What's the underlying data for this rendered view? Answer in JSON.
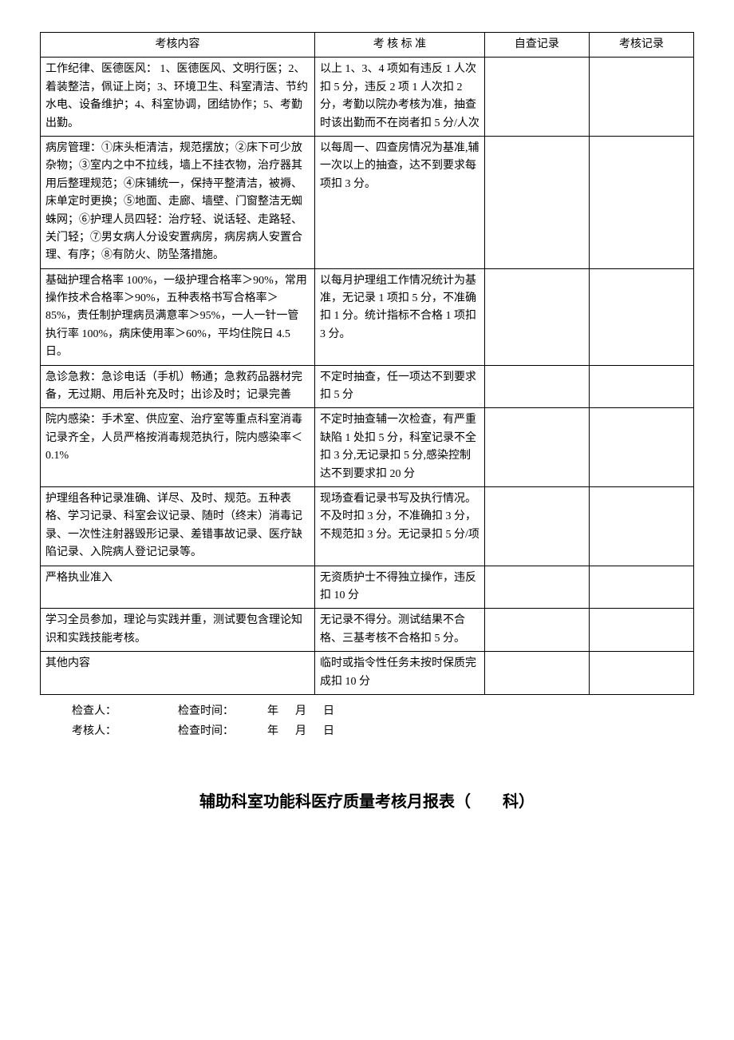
{
  "table": {
    "headers": [
      "考核内容",
      "考 核 标 准",
      "自查记录",
      "考核记录"
    ],
    "rows": [
      {
        "content": "工作纪律、医德医风：\n1、医德医风、文明行医；2、着装整洁，佩证上岗；3、环境卫生、科室清洁、节约水电、设备维护；4、科室协调，团结协作；5、考勤出勤。",
        "standard": "以上 1、3、4 项如有违反 1 人次扣 5 分，违反 2 项 1 人次扣 2 分，考勤以院办考核为准，抽查时该出勤而不在岗者扣 5 分/人次",
        "self": "",
        "review": ""
      },
      {
        "content": "病房管理：①床头柜清洁，规范摆放；②床下可少放杂物；③室内之中不拉线，墙上不挂衣物，治疗器其用后整理规范；④床铺统一，保持平整清洁，被褥、床单定时更换；⑤地面、走廊、墙壁、门窗整洁无蜘蛛网；⑥护理人员四轻：治疗轻、说话轻、走路轻、关门轻；⑦男女病人分设安置病房，病房病人安置合理、有序；⑧有防火、防坠落措施。",
        "standard": "以每周一、四查房情况为基准,辅一次以上的抽查，达不到要求每项扣 3 分。",
        "self": "",
        "review": ""
      },
      {
        "content": "基础护理合格率 100%，一级护理合格率＞90%，常用操作技术合格率＞90%，五种表格书写合格率＞85%，责任制护理病员满意率＞95%，一人一针一管　执行率 100%，病床使用率＞60%，平均住院日 4.5 日。",
        "standard": "以每月护理组工作情况统计为基准，无记录 1 项扣 5 分，不准确扣 1 分。统计指标不合格 1 项扣 3 分。",
        "self": "",
        "review": ""
      },
      {
        "content": "急诊急救：急诊电话（手机）畅通；急救药品器材完备，无过期、用后补充及时；出诊及时；记录完善",
        "standard": "不定时抽查，任一项达不到要求扣 5 分",
        "self": "",
        "review": ""
      },
      {
        "content": "院内感染：手术室、供应室、治疗室等重点科室消毒记录齐全，人员严格按消毒规范执行，院内感染率＜0.1%",
        "standard": "不定时抽查辅一次检查，有严重缺陷 1 处扣 5 分，科室记录不全扣 3 分,无记录扣 5 分,感染控制达不到要求扣 20 分",
        "self": "",
        "review": ""
      },
      {
        "content": "护理组各种记录准确、详尽、及时、规范。五种表格、学习记录、科室会议记录、随时（终末）消毒记录、一次性注射器毁形记录、差错事故记录、医疗缺陷记录、入院病人登记记录等。",
        "standard": "现场查看记录书写及执行情况。不及时扣 3 分，不准确扣 3 分，不规范扣 3 分。无记录扣 5 分/项",
        "self": "",
        "review": ""
      },
      {
        "content": "严格执业准入",
        "standard": "无资质护士不得独立操作，违反扣 10 分",
        "self": "",
        "review": ""
      },
      {
        "content": "学习全员参加，理论与实践并重，测试要包含理论知识和实践技能考核。",
        "standard": "无记录不得分。测试结果不合格、三基考核不合格扣 5 分。",
        "self": "",
        "review": ""
      },
      {
        "content": "其他内容",
        "standard": "临时或指令性任务未按时保质完成扣 10 分",
        "self": "",
        "review": ""
      }
    ]
  },
  "footer": {
    "line1": "检查人：                      检查时间：            年      月      日",
    "line2": "考核人：                      检查时间：            年      月      日"
  },
  "heading": "辅助科室功能科医疗质量考核月报表（　　科）",
  "style": {
    "background_color": "#ffffff",
    "text_color": "#000000",
    "border_color": "#000000",
    "body_fontsize": 14,
    "heading_fontsize": 20,
    "col_widths_pct": [
      42,
      26,
      16,
      16
    ]
  }
}
